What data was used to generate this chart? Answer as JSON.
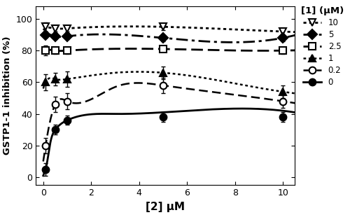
{
  "title": "",
  "xlabel": "[2] μM",
  "ylabel": "GSTP1-1 inhibition (%)",
  "xlim": [
    -0.3,
    10.5
  ],
  "ylim": [
    -5,
    108
  ],
  "xticks": [
    0,
    2,
    4,
    6,
    8,
    10
  ],
  "yticks": [
    0,
    20,
    40,
    60,
    80,
    100
  ],
  "legend_title": "[1] (μM)",
  "series": [
    {
      "label": "10",
      "x": [
        0.1,
        0.5,
        1.0,
        5.0,
        10.0
      ],
      "y": [
        95,
        94,
        94,
        95,
        92
      ],
      "yerr": [
        3,
        2,
        2,
        2,
        2
      ],
      "curve_x": [
        0.0,
        0.1,
        0.5,
        1.0,
        5.0,
        10.0
      ],
      "curve_y": [
        93,
        94,
        94,
        94,
        95,
        92
      ],
      "marker": "v",
      "markerfacecolor": "white",
      "markeredgecolor": "black",
      "linestyle": "dotted",
      "color": "black",
      "markersize": 7,
      "linewidth": 2.0
    },
    {
      "label": "5",
      "x": [
        0.1,
        0.5,
        1.0,
        5.0,
        10.0
      ],
      "y": [
        90,
        89,
        89,
        88,
        88
      ],
      "yerr": [
        2,
        2,
        2,
        2,
        2
      ],
      "curve_x": [
        0.0,
        0.1,
        0.5,
        1.0,
        5.0,
        10.0
      ],
      "curve_y": [
        89,
        90,
        89,
        89,
        88,
        88
      ],
      "marker": "D",
      "markerfacecolor": "black",
      "markeredgecolor": "black",
      "linestyle": "dashdot",
      "color": "black",
      "markersize": 7,
      "linewidth": 2.0
    },
    {
      "label": "2.5",
      "x": [
        0.1,
        0.5,
        1.0,
        5.0,
        10.0
      ],
      "y": [
        80,
        80,
        80,
        81,
        80
      ],
      "yerr": [
        3,
        2,
        2,
        2,
        2
      ],
      "curve_x": [
        0.0,
        0.1,
        0.5,
        1.0,
        5.0,
        10.0
      ],
      "curve_y": [
        79,
        80,
        80,
        80,
        81,
        80
      ],
      "marker": "s",
      "markerfacecolor": "white",
      "markeredgecolor": "black",
      "linestyle": "dashed_long",
      "color": "black",
      "markersize": 7,
      "linewidth": 2.0
    },
    {
      "label": "1",
      "x": [
        0.1,
        0.5,
        1.0,
        5.0,
        10.0
      ],
      "y": [
        60,
        62,
        62,
        66,
        54
      ],
      "yerr": [
        5,
        4,
        5,
        4,
        4
      ],
      "curve_x": [
        0.0,
        0.1,
        0.5,
        1.0,
        3.0,
        5.0,
        7.0,
        10.0
      ],
      "curve_y": [
        56,
        60,
        62,
        62,
        66,
        66,
        62,
        54
      ],
      "marker": "^",
      "markerfacecolor": "black",
      "markeredgecolor": "black",
      "linestyle": "dotted_dense",
      "color": "black",
      "markersize": 7,
      "linewidth": 1.8
    },
    {
      "label": "0.2",
      "x": [
        0.1,
        0.5,
        1.0,
        5.0,
        10.0
      ],
      "y": [
        20,
        46,
        48,
        58,
        48
      ],
      "yerr": [
        5,
        5,
        5,
        5,
        4
      ],
      "curve_x": [
        0.0,
        0.05,
        0.1,
        0.5,
        1.0,
        3.0,
        5.0,
        7.0,
        10.0
      ],
      "curve_y": [
        10,
        15,
        20,
        46,
        48,
        57,
        58,
        54,
        48
      ],
      "marker": "o",
      "markerfacecolor": "white",
      "markeredgecolor": "black",
      "linestyle": "dashed",
      "color": "black",
      "markersize": 7,
      "linewidth": 1.8
    },
    {
      "label": "0",
      "x": [
        0.1,
        0.5,
        1.0,
        5.0,
        10.0
      ],
      "y": [
        5,
        30,
        36,
        38,
        38
      ],
      "yerr": [
        4,
        3,
        3,
        3,
        3
      ],
      "curve_x": [
        0.0,
        0.05,
        0.1,
        0.3,
        0.5,
        1.0,
        3.0,
        5.0,
        10.0
      ],
      "curve_y": [
        1,
        3,
        5,
        22,
        30,
        36,
        40,
        41,
        42
      ],
      "marker": "o",
      "markerfacecolor": "black",
      "markeredgecolor": "black",
      "linestyle": "solid",
      "color": "black",
      "markersize": 7,
      "linewidth": 2.0
    }
  ],
  "background_color": "white"
}
